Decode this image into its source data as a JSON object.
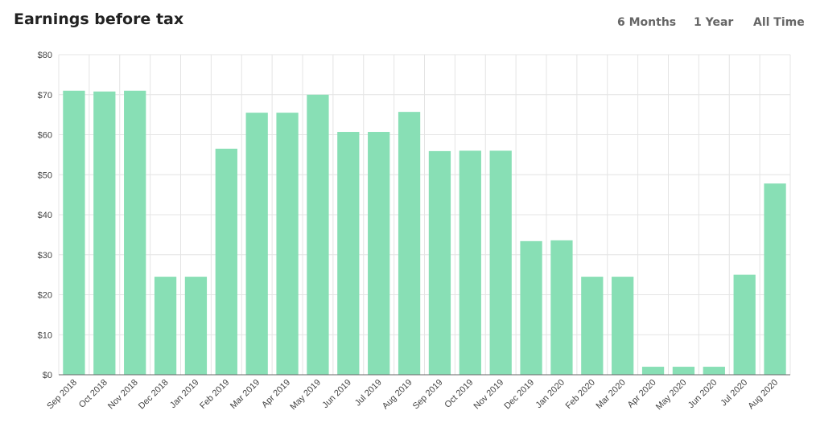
{
  "chart_data": {
    "type": "bar",
    "title": "Earnings before tax",
    "range_options": [
      "6 Months",
      "1 Year",
      "All Time"
    ],
    "categories": [
      "Sep 2018",
      "Oct 2018",
      "Nov 2018",
      "Dec 2018",
      "Jan 2019",
      "Feb 2019",
      "Mar 2019",
      "Apr 2019",
      "May 2019",
      "Jun 2019",
      "Jul 2019",
      "Aug 2019",
      "Sep 2019",
      "Oct 2019",
      "Nov 2019",
      "Dec 2019",
      "Jan 2020",
      "Feb 2020",
      "Mar 2020",
      "Apr 2020",
      "May 2020",
      "Jun 2020",
      "Jul 2020",
      "Aug 2020"
    ],
    "values": [
      71,
      70.8,
      71,
      24.5,
      24.5,
      56.5,
      65.5,
      65.5,
      70,
      60.7,
      60.7,
      65.7,
      55.9,
      56,
      56,
      33.4,
      33.6,
      24.5,
      24.5,
      2,
      2,
      2,
      25,
      47.8
    ],
    "color": "#88dfb5",
    "ylim": [
      0,
      80
    ],
    "yticks": [
      {
        "value": 0,
        "label": "$0"
      },
      {
        "value": 10,
        "label": "$10"
      },
      {
        "value": 20,
        "label": "$20"
      },
      {
        "value": 30,
        "label": "$30"
      },
      {
        "value": 40,
        "label": "$40"
      },
      {
        "value": 50,
        "label": "$50"
      },
      {
        "value": 60,
        "label": "$60"
      },
      {
        "value": 70,
        "label": "$70"
      },
      {
        "value": 80,
        "label": "$80"
      }
    ],
    "grid": true
  }
}
